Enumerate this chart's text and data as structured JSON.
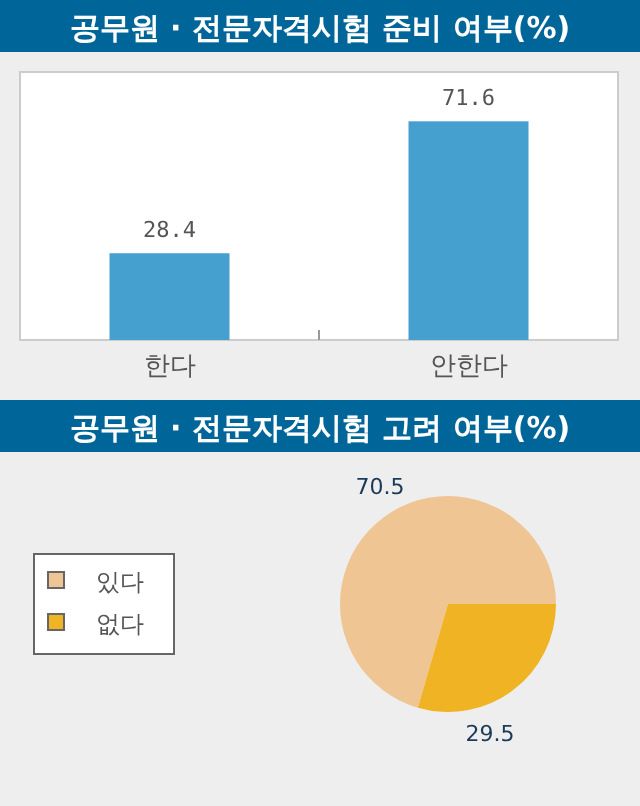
{
  "chart_data": [
    {
      "type": "bar",
      "title": "공무원 · 전문자격시험 준비 여부(%)",
      "categories": [
        "한다",
        "안한다"
      ],
      "values": [
        28.4,
        71.6
      ],
      "color": "#459fcf",
      "data_labels": true
    },
    {
      "type": "pie",
      "title": "공무원 · 전문자격시험 고려 여부(%)",
      "categories": [
        "있다",
        "없다"
      ],
      "values": [
        70.5,
        29.5
      ],
      "colors": [
        "#efc693",
        "#efb324"
      ],
      "data_labels": true,
      "legend": "left"
    }
  ]
}
